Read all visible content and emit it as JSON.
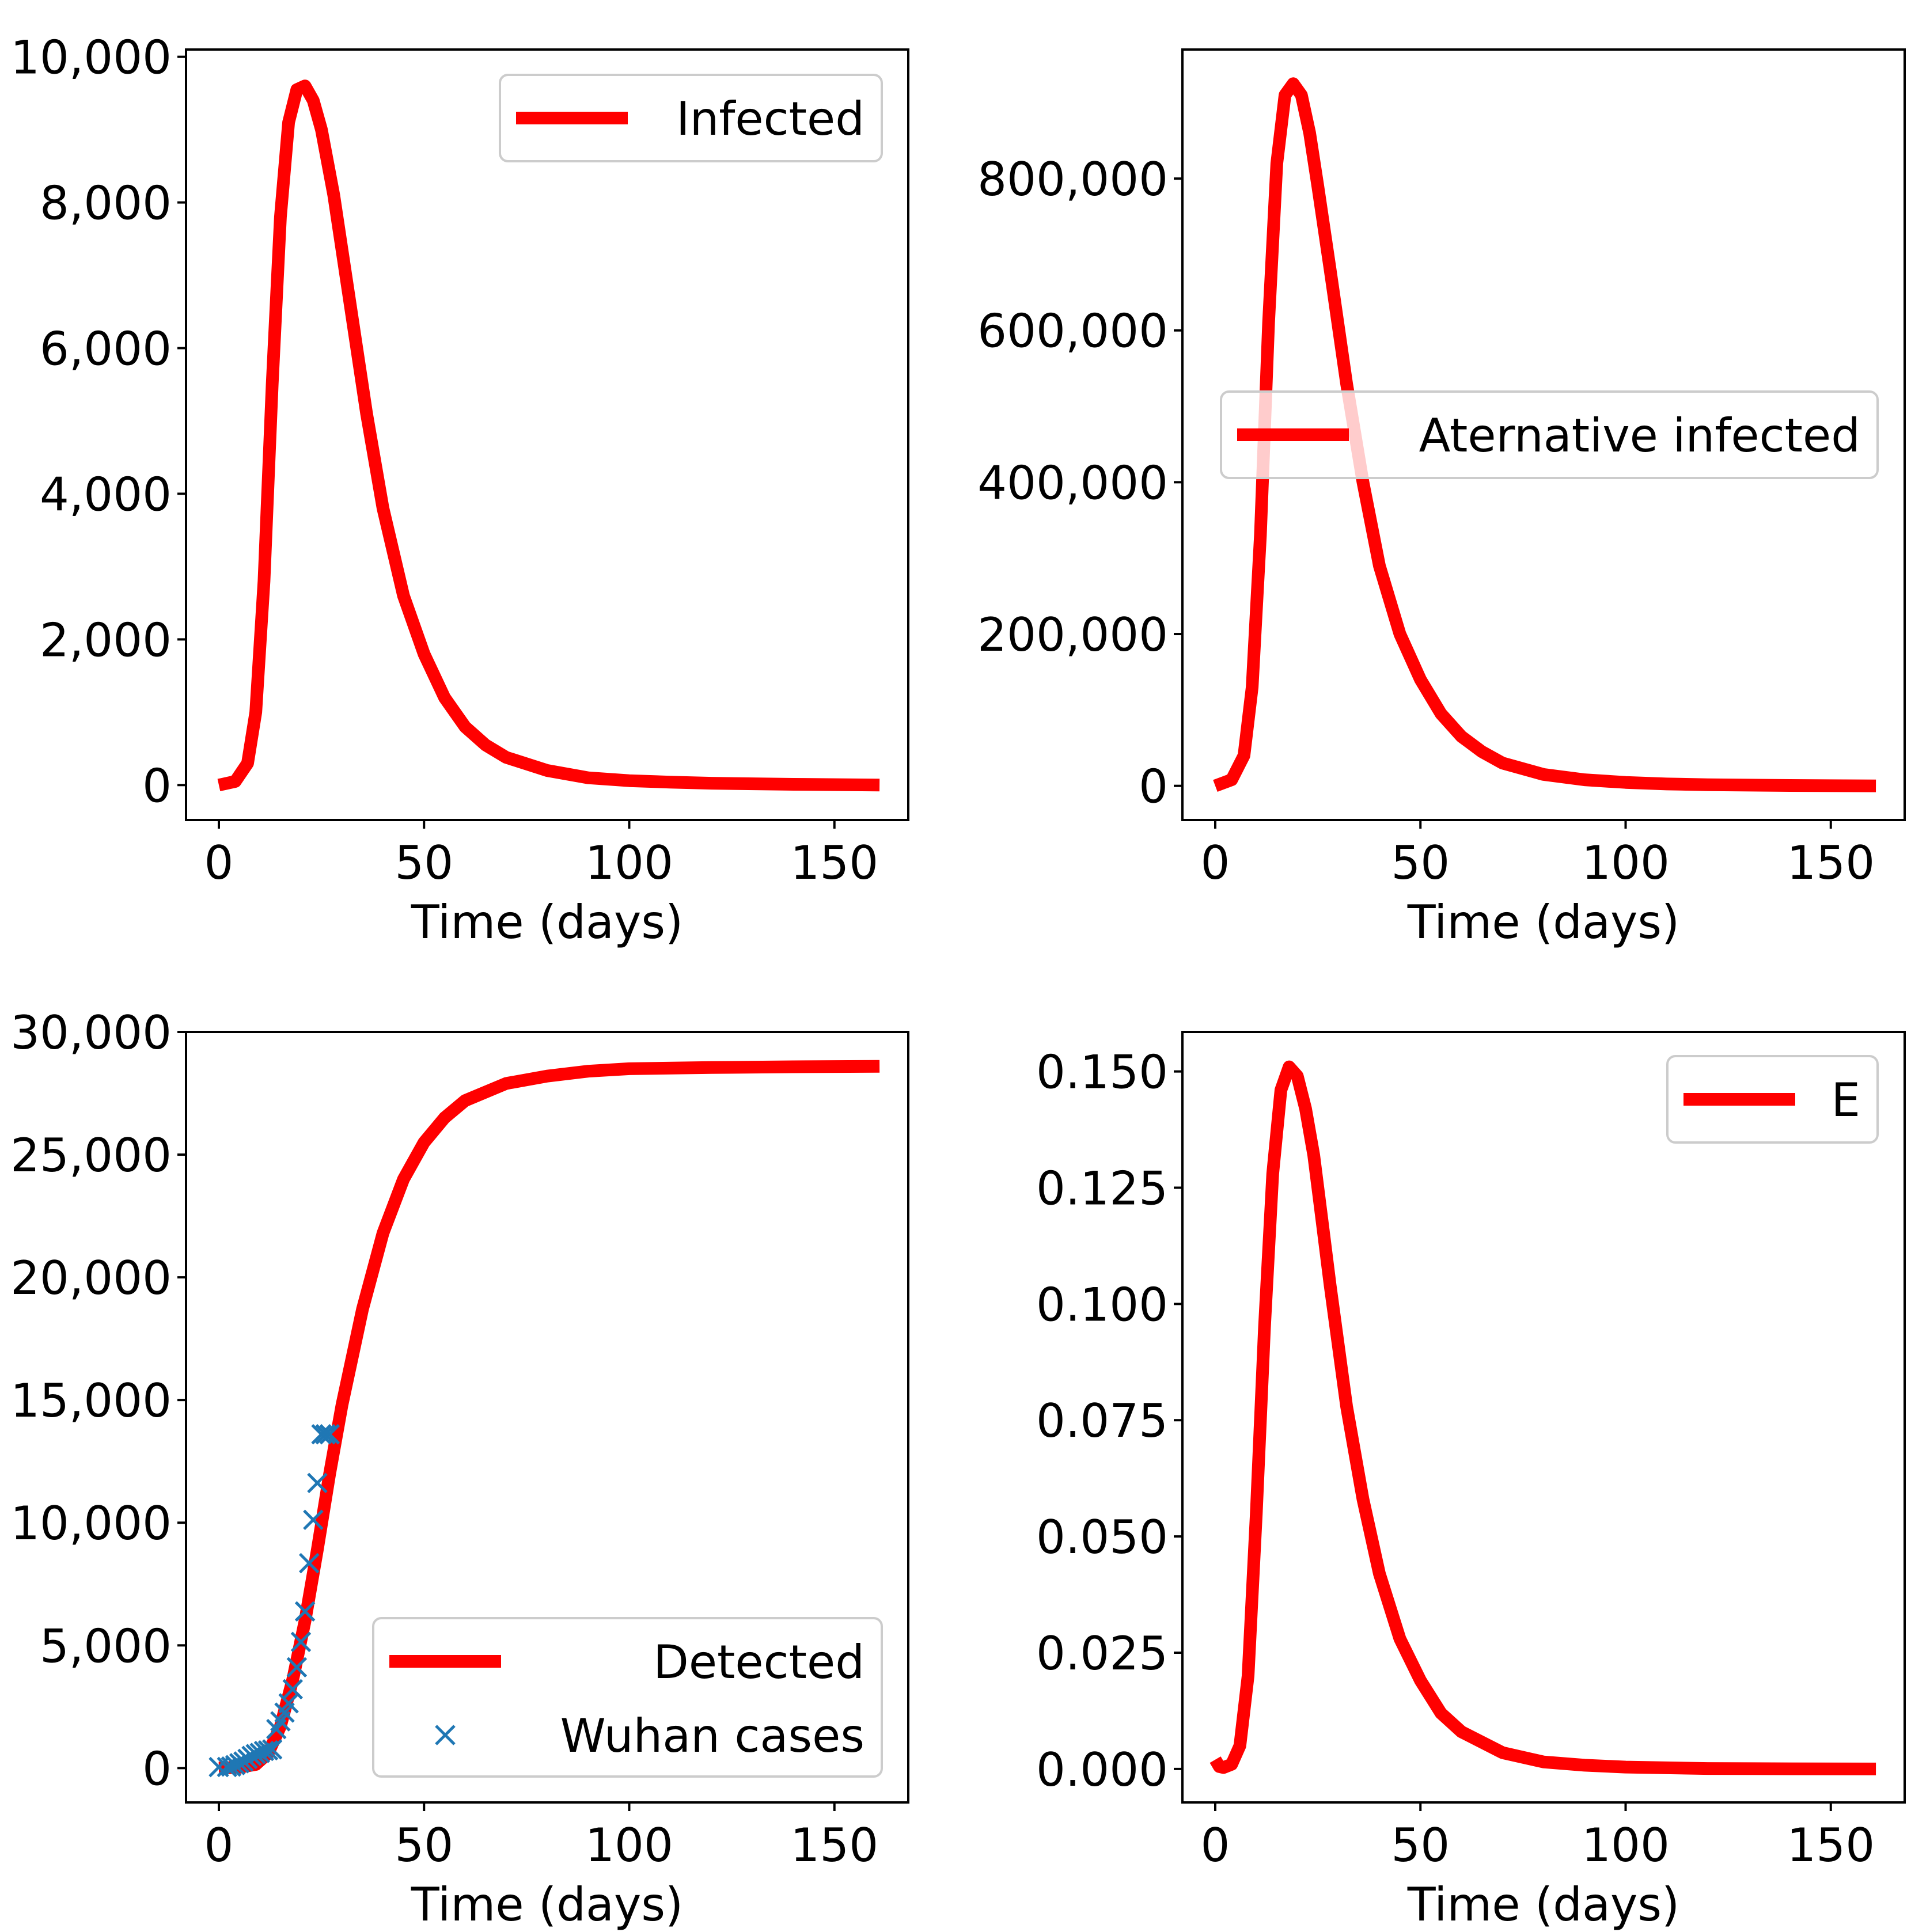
{
  "chart_data": [
    {
      "type": "line",
      "xlabel": "Time (days)",
      "ylabel": "",
      "xlim": [
        -8,
        168
      ],
      "ylim": [
        -480,
        10100
      ],
      "xticks": [
        0,
        50,
        100,
        150
      ],
      "xtick_labels": [
        "0",
        "50",
        "100",
        "150"
      ],
      "yticks": [
        0,
        2000,
        4000,
        6000,
        8000,
        10000
      ],
      "ytick_labels": [
        "0",
        "2,000",
        "4,000",
        "6,000",
        "8,000",
        "10,000"
      ],
      "legend_position": "upper-right",
      "series": [
        {
          "name": "Infected",
          "color": "#ff0000",
          "x": [
            0,
            4,
            7,
            9,
            11,
            13,
            15,
            17,
            19,
            21,
            23,
            25,
            28,
            32,
            36,
            40,
            45,
            50,
            55,
            60,
            65,
            70,
            80,
            90,
            100,
            110,
            120,
            140,
            161
          ],
          "y": [
            0,
            50,
            300,
            1000,
            2800,
            5500,
            7800,
            9100,
            9550,
            9600,
            9400,
            9000,
            8100,
            6600,
            5100,
            3800,
            2600,
            1800,
            1200,
            800,
            550,
            380,
            200,
            100,
            60,
            40,
            25,
            10,
            0
          ]
        }
      ]
    },
    {
      "type": "line",
      "xlabel": "Time (days)",
      "ylabel": "",
      "xlim": [
        -8,
        168
      ],
      "ylim": [
        -45000,
        970000
      ],
      "xticks": [
        0,
        50,
        100,
        150
      ],
      "xtick_labels": [
        "0",
        "50",
        "100",
        "150"
      ],
      "yticks": [
        0,
        200000,
        400000,
        600000,
        800000
      ],
      "ytick_labels": [
        "0",
        "200,000",
        "400,000",
        "600,000",
        "800,000"
      ],
      "legend_position": "center-right",
      "series": [
        {
          "name": "Aternative infected",
          "color": "#ff0000",
          "x": [
            0,
            4,
            7,
            9,
            11,
            13,
            15,
            17,
            19,
            21,
            23,
            25,
            28,
            32,
            36,
            40,
            45,
            50,
            55,
            60,
            65,
            70,
            80,
            90,
            100,
            110,
            120,
            140,
            161
          ],
          "y": [
            0,
            8000,
            40000,
            130000,
            330000,
            610000,
            820000,
            910000,
            925000,
            910000,
            860000,
            790000,
            680000,
            530000,
            400000,
            290000,
            200000,
            140000,
            95000,
            65000,
            45000,
            30000,
            15000,
            8000,
            4500,
            2500,
            1500,
            500,
            0
          ]
        }
      ]
    },
    {
      "type": "line",
      "xlabel": "Time (days)",
      "ylabel": "",
      "xlim": [
        -8,
        168
      ],
      "ylim": [
        -1400,
        30000
      ],
      "xticks": [
        0,
        50,
        100,
        150
      ],
      "xtick_labels": [
        "0",
        "50",
        "100",
        "150"
      ],
      "yticks": [
        0,
        5000,
        10000,
        15000,
        20000,
        25000,
        30000
      ],
      "ytick_labels": [
        "0",
        "5,000",
        "10,000",
        "15,000",
        "20,000",
        "25,000",
        "30,000"
      ],
      "legend_position": "lower-right",
      "series": [
        {
          "name": "Detected",
          "color": "#ff0000",
          "x": [
            0,
            5,
            9,
            12,
            15,
            18,
            21,
            24,
            27,
            30,
            35,
            40,
            45,
            50,
            55,
            60,
            70,
            80,
            90,
            100,
            120,
            140,
            161
          ],
          "y": [
            0,
            30,
            150,
            600,
            1700,
            3600,
            6000,
            8900,
            12000,
            14800,
            18700,
            21800,
            24000,
            25500,
            26500,
            27200,
            27900,
            28200,
            28400,
            28500,
            28550,
            28580,
            28600
          ]
        },
        {
          "name": "Wuhan cases",
          "color": "#1f77b4",
          "marker": "x",
          "x": [
            0,
            2,
            3,
            4,
            5,
            6,
            7,
            8,
            9,
            10,
            11,
            12,
            13,
            14,
            15,
            16,
            17,
            18,
            19,
            20,
            21,
            22,
            23,
            24,
            25,
            26,
            27
          ],
          "y": [
            41,
            45,
            62,
            121,
            198,
            270,
            375,
            495,
            572,
            618,
            698,
            723,
            762,
            1590,
            1905,
            2261,
            2639,
            3215,
            4109,
            5142,
            6384,
            8351,
            10117,
            11618,
            13603,
            13603,
            13603
          ]
        }
      ]
    },
    {
      "type": "line",
      "xlabel": "Time (days)",
      "ylabel": "",
      "xlim": [
        -8,
        168
      ],
      "ylim": [
        -0.0072,
        0.1585
      ],
      "xticks": [
        0,
        50,
        100,
        150
      ],
      "xtick_labels": [
        "0",
        "50",
        "100",
        "150"
      ],
      "yticks": [
        0,
        0.025,
        0.05,
        0.075,
        0.1,
        0.125,
        0.15
      ],
      "ytick_labels": [
        "0.000",
        "0.025",
        "0.050",
        "0.075",
        "0.100",
        "0.125",
        "0.150"
      ],
      "legend_position": "upper-right",
      "series": [
        {
          "name": "E",
          "color": "#ff0000",
          "x": [
            0,
            1,
            2,
            4,
            6,
            8,
            10,
            12,
            14,
            16,
            18,
            20,
            22,
            24,
            26,
            28,
            32,
            36,
            40,
            45,
            50,
            55,
            60,
            70,
            80,
            90,
            100,
            120,
            140,
            161
          ],
          "y": [
            0.002,
            0.0005,
            0.0003,
            0.001,
            0.005,
            0.02,
            0.055,
            0.095,
            0.128,
            0.146,
            0.151,
            0.149,
            0.142,
            0.132,
            0.118,
            0.104,
            0.078,
            0.058,
            0.042,
            0.028,
            0.019,
            0.012,
            0.008,
            0.0035,
            0.0015,
            0.0008,
            0.0004,
            0.0001,
            3e-05,
            0
          ]
        }
      ]
    }
  ]
}
